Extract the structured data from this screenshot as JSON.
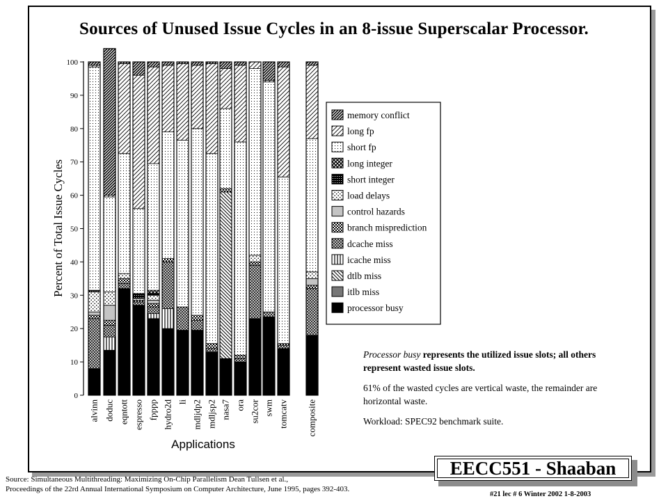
{
  "slide": {
    "title": "Sources of Unused Issue Cycles in an 8-issue Superscalar Processor.",
    "note_line1_italic": "Processor busy",
    "note_line1_bold": " represents the utilized issue slots; all others represent wasted issue slots.",
    "note_line2": "61% of the wasted cycles are vertical waste, the remainder are horizontal waste.",
    "note_line3": "Workload: SPEC92 benchmark suite.",
    "badge": "EECC551 - Shaaban",
    "source_line1": "Source:  Simultaneous Multithreading: Maximizing On-Chip Parallelism    Dean Tullsen et al.,",
    "source_line2": "Proceedings  of the 22rd Annual International Symposium on Computer Architecture, June 1995, pages 392-403.",
    "footer": "#21   lec # 6  Winter 2002  1-8-2003"
  },
  "chart_data": {
    "type": "bar",
    "stacked": true,
    "title": "Sources of Unused Issue Cycles in an 8-issue Superscalar Processor.",
    "xlabel": "Applications",
    "ylabel": "Percent of Total Issue Cycles",
    "ylim": [
      0,
      100
    ],
    "yticks": [
      0,
      10,
      20,
      30,
      40,
      50,
      60,
      70,
      80,
      90,
      100
    ],
    "categories": [
      "alvinn",
      "doduc",
      "eqntott",
      "espresso",
      "fpppp",
      "hydro2d",
      "li",
      "mdljdp2",
      "mdljsp2",
      "nasa7",
      "ora",
      "su2cor",
      "swm",
      "tomcatv",
      "composite"
    ],
    "legend_position": "right",
    "series": [
      {
        "name": "processor busy",
        "pattern": "solid-black",
        "values": [
          8,
          13.5,
          32,
          27,
          23,
          20,
          19.5,
          19.5,
          13,
          11,
          10,
          23,
          23.5,
          14,
          18
        ]
      },
      {
        "name": "itlb miss",
        "pattern": "dark-gray",
        "values": [
          0,
          0,
          0,
          0,
          0,
          0,
          0,
          0,
          0,
          0,
          0,
          0,
          0,
          0,
          0
        ]
      },
      {
        "name": "dtlb miss",
        "pattern": "back-diagonal",
        "values": [
          0,
          0,
          0,
          0,
          0,
          0,
          0,
          0,
          0,
          50,
          0,
          0,
          0,
          0,
          0
        ]
      },
      {
        "name": "icache miss",
        "pattern": "vertical-lines",
        "values": [
          0,
          4,
          0,
          0,
          1.5,
          6,
          0,
          0,
          0,
          0,
          0,
          0,
          0,
          0,
          0
        ]
      },
      {
        "name": "dcache miss",
        "pattern": "dense-crosshatch",
        "values": [
          15,
          3.5,
          1.5,
          1,
          2,
          14,
          7,
          3,
          1,
          0,
          1,
          16,
          1.5,
          1,
          14
        ]
      },
      {
        "name": "branch misprediction",
        "pattern": "checker",
        "values": [
          1,
          1.5,
          1.5,
          0.5,
          1,
          1,
          0,
          1.5,
          1.5,
          1,
          1,
          1,
          0,
          0.5,
          1
        ]
      },
      {
        "name": "control hazards",
        "pattern": "light-gray",
        "values": [
          1,
          4.5,
          0,
          0,
          1,
          0,
          0,
          0,
          0,
          0,
          0,
          0,
          0,
          0,
          2
        ]
      },
      {
        "name": "load delays",
        "pattern": "dots",
        "values": [
          6,
          4,
          1.5,
          0.5,
          1.5,
          0,
          0,
          0,
          0,
          0,
          0,
          2,
          0,
          0,
          2
        ]
      },
      {
        "name": "short integer",
        "pattern": "dense-grid",
        "values": [
          0.5,
          0,
          0,
          1.5,
          0.5,
          0,
          0,
          0,
          0,
          0,
          0,
          0,
          0,
          0,
          0
        ]
      },
      {
        "name": "long integer",
        "pattern": "diagonal-crosshatch",
        "values": [
          0,
          0,
          0,
          0,
          1,
          0,
          0,
          0,
          0,
          0,
          0,
          0,
          0,
          0,
          0
        ]
      },
      {
        "name": "short fp",
        "pattern": "fine-dots",
        "values": [
          67,
          28.5,
          36,
          25.5,
          38,
          38,
          50,
          56,
          57,
          24,
          64,
          56,
          69,
          50,
          40
        ]
      },
      {
        "name": "long fp",
        "pattern": "forward-diagonal",
        "values": [
          0.5,
          0.5,
          27,
          40,
          29,
          20,
          23,
          19,
          27,
          12,
          23,
          2,
          0.5,
          33,
          22
        ]
      },
      {
        "name": "memory conflict",
        "pattern": "heavy-diagonal",
        "values": [
          1,
          44,
          0.5,
          4,
          1.5,
          1,
          0.5,
          1,
          0.5,
          2,
          1,
          0,
          5.5,
          1.5,
          1
        ]
      }
    ]
  }
}
